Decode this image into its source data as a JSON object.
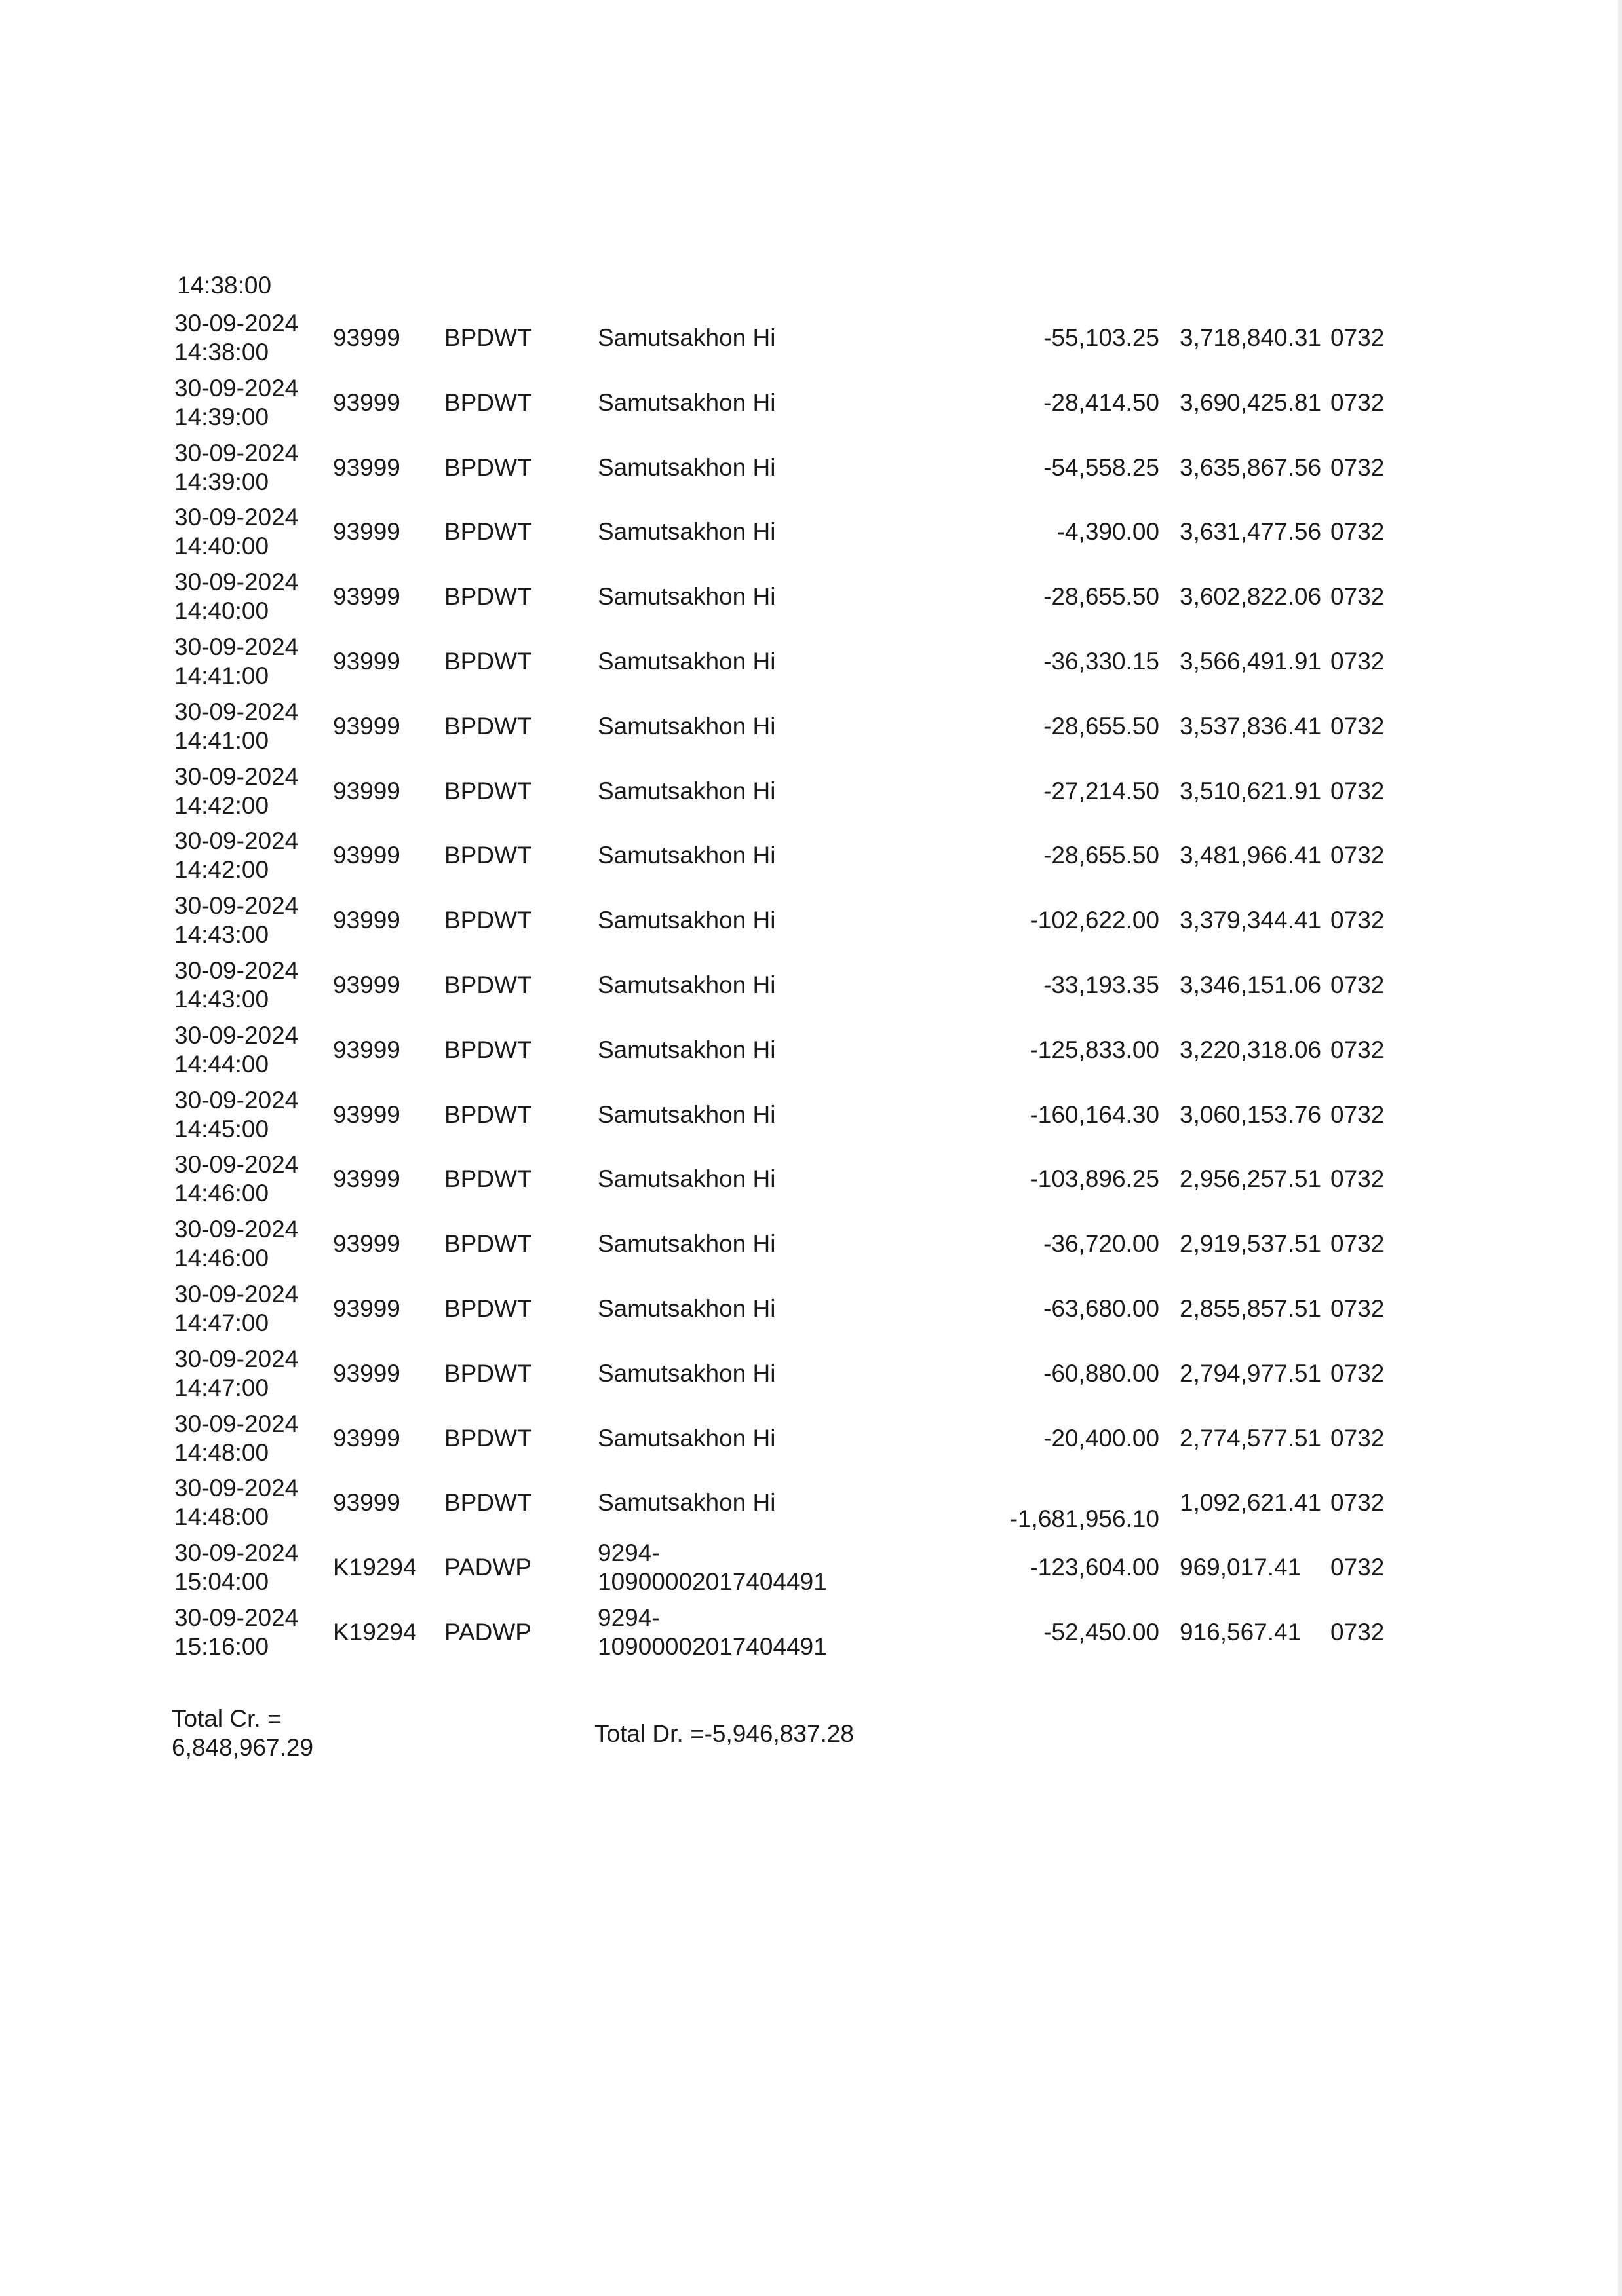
{
  "carryover_time": "14:38:00",
  "rows": [
    {
      "date": "30-09-2024",
      "time": "14:38:00",
      "code": "93999",
      "type": "BPDWT",
      "desc": [
        "Samutsakhon Hi"
      ],
      "amount": "-55,103.25",
      "balance": "3,718,840.31",
      "branch": "0732"
    },
    {
      "date": "30-09-2024",
      "time": "14:39:00",
      "code": "93999",
      "type": "BPDWT",
      "desc": [
        "Samutsakhon Hi"
      ],
      "amount": "-28,414.50",
      "balance": "3,690,425.81",
      "branch": "0732"
    },
    {
      "date": "30-09-2024",
      "time": "14:39:00",
      "code": "93999",
      "type": "BPDWT",
      "desc": [
        "Samutsakhon Hi"
      ],
      "amount": "-54,558.25",
      "balance": "3,635,867.56",
      "branch": "0732"
    },
    {
      "date": "30-09-2024",
      "time": "14:40:00",
      "code": "93999",
      "type": "BPDWT",
      "desc": [
        "Samutsakhon Hi"
      ],
      "amount": "-4,390.00",
      "balance": "3,631,477.56",
      "branch": "0732"
    },
    {
      "date": "30-09-2024",
      "time": "14:40:00",
      "code": "93999",
      "type": "BPDWT",
      "desc": [
        "Samutsakhon Hi"
      ],
      "amount": "-28,655.50",
      "balance": "3,602,822.06",
      "branch": "0732"
    },
    {
      "date": "30-09-2024",
      "time": "14:41:00",
      "code": "93999",
      "type": "BPDWT",
      "desc": [
        "Samutsakhon Hi"
      ],
      "amount": "-36,330.15",
      "balance": "3,566,491.91",
      "branch": "0732"
    },
    {
      "date": "30-09-2024",
      "time": "14:41:00",
      "code": "93999",
      "type": "BPDWT",
      "desc": [
        "Samutsakhon Hi"
      ],
      "amount": "-28,655.50",
      "balance": "3,537,836.41",
      "branch": "0732"
    },
    {
      "date": "30-09-2024",
      "time": "14:42:00",
      "code": "93999",
      "type": "BPDWT",
      "desc": [
        "Samutsakhon Hi"
      ],
      "amount": "-27,214.50",
      "balance": "3,510,621.91",
      "branch": "0732"
    },
    {
      "date": "30-09-2024",
      "time": "14:42:00",
      "code": "93999",
      "type": "BPDWT",
      "desc": [
        "Samutsakhon Hi"
      ],
      "amount": "-28,655.50",
      "balance": "3,481,966.41",
      "branch": "0732"
    },
    {
      "date": "30-09-2024",
      "time": "14:43:00",
      "code": "93999",
      "type": "BPDWT",
      "desc": [
        "Samutsakhon Hi"
      ],
      "amount": "-102,622.00",
      "balance": "3,379,344.41",
      "branch": "0732"
    },
    {
      "date": "30-09-2024",
      "time": "14:43:00",
      "code": "93999",
      "type": "BPDWT",
      "desc": [
        "Samutsakhon Hi"
      ],
      "amount": "-33,193.35",
      "balance": "3,346,151.06",
      "branch": "0732"
    },
    {
      "date": "30-09-2024",
      "time": "14:44:00",
      "code": "93999",
      "type": "BPDWT",
      "desc": [
        "Samutsakhon Hi"
      ],
      "amount": "-125,833.00",
      "balance": "3,220,318.06",
      "branch": "0732"
    },
    {
      "date": "30-09-2024",
      "time": "14:45:00",
      "code": "93999",
      "type": "BPDWT",
      "desc": [
        "Samutsakhon Hi"
      ],
      "amount": "-160,164.30",
      "balance": "3,060,153.76",
      "branch": "0732"
    },
    {
      "date": "30-09-2024",
      "time": "14:46:00",
      "code": "93999",
      "type": "BPDWT",
      "desc": [
        "Samutsakhon Hi"
      ],
      "amount": "-103,896.25",
      "balance": "2,956,257.51",
      "branch": "0732"
    },
    {
      "date": "30-09-2024",
      "time": "14:46:00",
      "code": "93999",
      "type": "BPDWT",
      "desc": [
        "Samutsakhon Hi"
      ],
      "amount": "-36,720.00",
      "balance": "2,919,537.51",
      "branch": "0732"
    },
    {
      "date": "30-09-2024",
      "time": "14:47:00",
      "code": "93999",
      "type": "BPDWT",
      "desc": [
        "Samutsakhon Hi"
      ],
      "amount": "-63,680.00",
      "balance": "2,855,857.51",
      "branch": "0732"
    },
    {
      "date": "30-09-2024",
      "time": "14:47:00",
      "code": "93999",
      "type": "BPDWT",
      "desc": [
        "Samutsakhon Hi"
      ],
      "amount": "-60,880.00",
      "balance": "2,794,977.51",
      "branch": "0732"
    },
    {
      "date": "30-09-2024",
      "time": "14:48:00",
      "code": "93999",
      "type": "BPDWT",
      "desc": [
        "Samutsakhon Hi"
      ],
      "amount": "-20,400.00",
      "balance": "2,774,577.51",
      "branch": "0732"
    },
    {
      "date": "30-09-2024",
      "time": "14:48:00",
      "code": "93999",
      "type": "BPDWT",
      "desc": [
        "Samutsakhon Hi"
      ],
      "amount": "-1,681,956.10",
      "balance": "1,092,621.41",
      "branch": "0732"
    },
    {
      "date": "30-09-2024",
      "time": "15:04:00",
      "code": "K19294",
      "type": "PADWP",
      "desc": [
        "9294-",
        "10900002017404491"
      ],
      "amount": "-123,604.00",
      "balance": "969,017.41",
      "branch": "0732"
    },
    {
      "date": "30-09-2024",
      "time": "15:16:00",
      "code": "K19294",
      "type": "PADWP",
      "desc": [
        "9294-",
        "10900002017404491"
      ],
      "amount": "-52,450.00",
      "balance": "916,567.41",
      "branch": "0732"
    }
  ],
  "totals": {
    "credit_label": "Total Cr. =",
    "credit_value": "6,848,967.29",
    "debit": "Total Dr. =-5,946,837.28"
  }
}
